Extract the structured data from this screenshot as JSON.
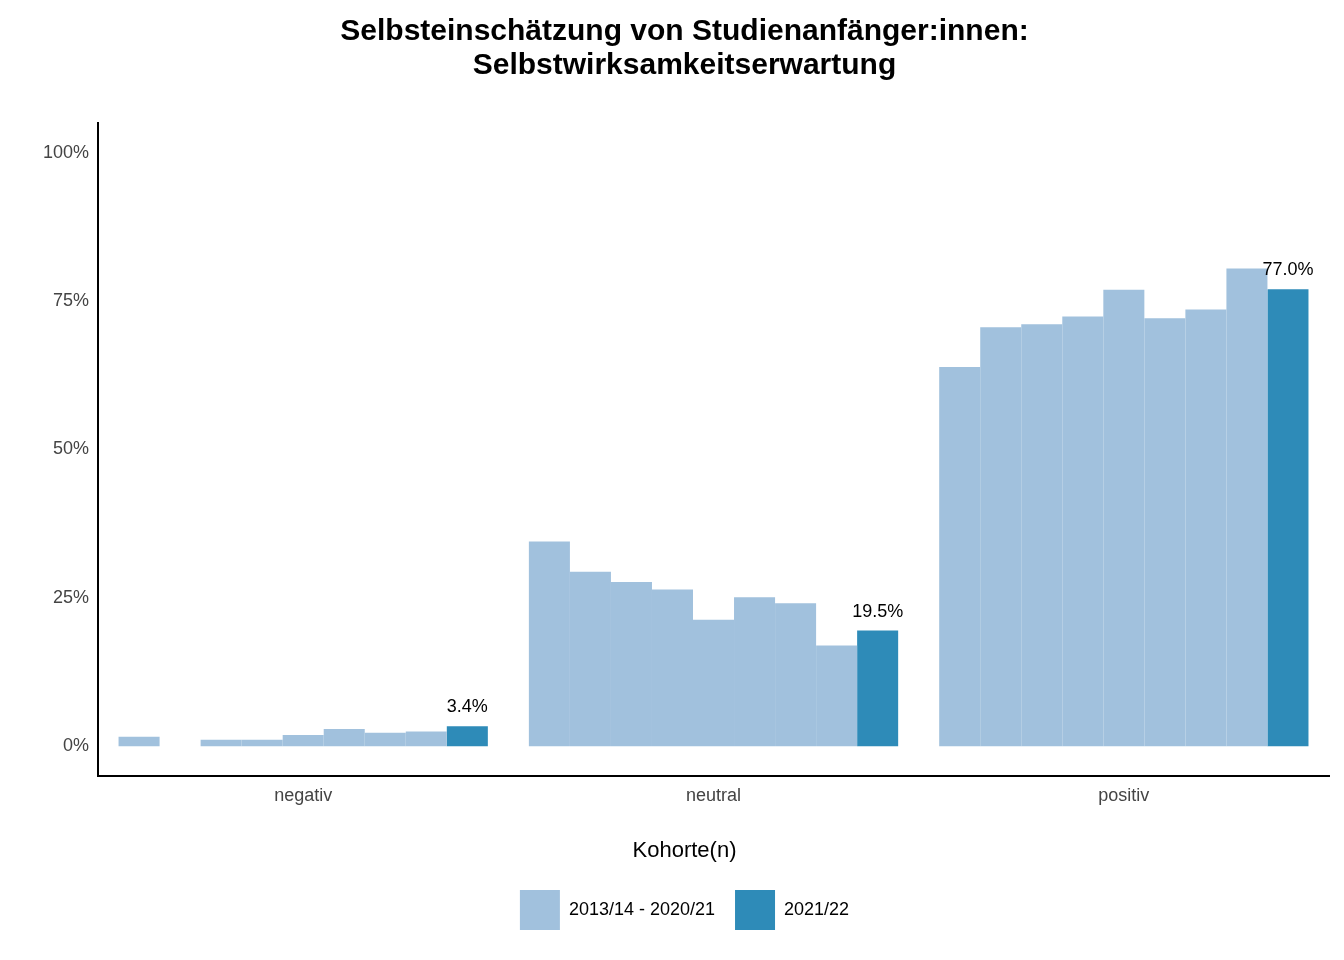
{
  "chart_data": {
    "type": "bar",
    "title": [
      "Selbsteinschätzung von Studienanfänger:innen:",
      "Selbstwirksamkeitserwartung"
    ],
    "categories": [
      "negativ",
      "neutral",
      "positiv"
    ],
    "series": [
      {
        "name": "2013/14 - 2020/21",
        "color": "#a1c1dd",
        "values": [
          1.6,
          34.5,
          63.9
        ]
      },
      {
        "name": "2013/14 - 2020/21",
        "color": "#a1c1dd",
        "values": [
          0,
          29.4,
          70.6
        ]
      },
      {
        "name": "2013/14 - 2020/21",
        "color": "#a1c1dd",
        "values": [
          1.1,
          27.7,
          71.1
        ]
      },
      {
        "name": "2013/14 - 2020/21",
        "color": "#a1c1dd",
        "values": [
          1.1,
          26.4,
          72.4
        ]
      },
      {
        "name": "2013/14 - 2020/21",
        "color": "#a1c1dd",
        "values": [
          1.9,
          21.3,
          76.9
        ]
      },
      {
        "name": "2013/14 - 2020/21",
        "color": "#a1c1dd",
        "values": [
          2.9,
          25.1,
          72.1
        ]
      },
      {
        "name": "2013/14 - 2020/21",
        "color": "#a1c1dd",
        "values": [
          2.3,
          24.1,
          73.6
        ]
      },
      {
        "name": "2013/14 - 2020/21",
        "color": "#a1c1dd",
        "values": [
          2.5,
          17.0,
          80.5
        ]
      },
      {
        "name": "2021/22",
        "color": "#2e8bb8",
        "values": [
          3.4,
          19.5,
          77.0
        ],
        "value_labels": [
          "3.4%",
          "19.5%",
          "77.0%"
        ]
      }
    ],
    "ylim": [
      -5,
      105
    ],
    "yticks": [
      {
        "value": 0,
        "label": "0%"
      },
      {
        "value": 25,
        "label": "25%"
      },
      {
        "value": 50,
        "label": "50%"
      },
      {
        "value": 75,
        "label": "75%"
      },
      {
        "value": 100,
        "label": "100%"
      }
    ],
    "grid": false,
    "legend": "bottom",
    "legend_title": "Kohorte(n)",
    "data_labels": true
  }
}
